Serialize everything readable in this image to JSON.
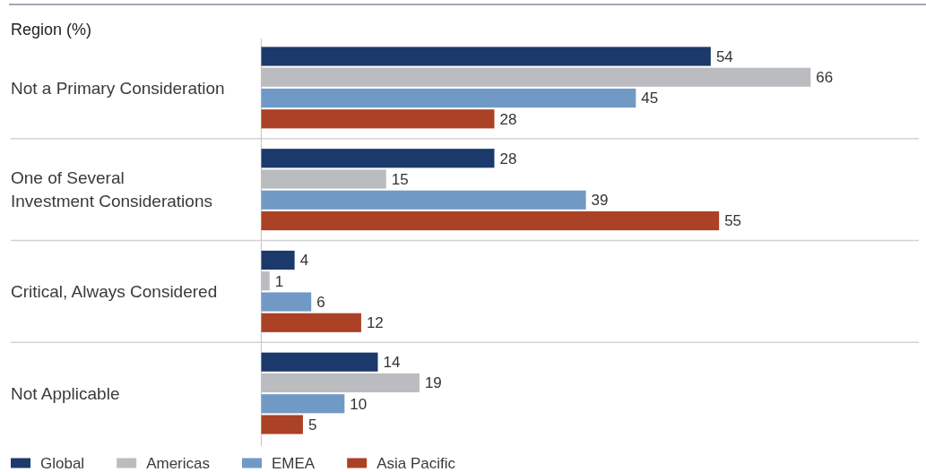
{
  "chart_data": {
    "type": "bar",
    "orientation": "horizontal",
    "title": "Region (%)",
    "categories": [
      "Not a Primary Consideration",
      "One of Several\nInvestment Considerations",
      "Critical, Always Considered",
      "Not Applicable"
    ],
    "series": [
      {
        "name": "Global",
        "color": "#1b3a6b",
        "values": [
          54,
          28,
          4,
          14
        ]
      },
      {
        "name": "Americas",
        "color": "#bbbcbf",
        "values": [
          66,
          15,
          1,
          19
        ]
      },
      {
        "name": "EMEA",
        "color": "#7199c6",
        "values": [
          45,
          39,
          6,
          10
        ]
      },
      {
        "name": "Asia Pacific",
        "color": "#ab4125",
        "values": [
          28,
          55,
          12,
          5
        ]
      }
    ],
    "xlim": [
      0,
      79
    ],
    "tick_labels": "y",
    "grid": "y",
    "legend": "bottom",
    "data_labels": true
  }
}
